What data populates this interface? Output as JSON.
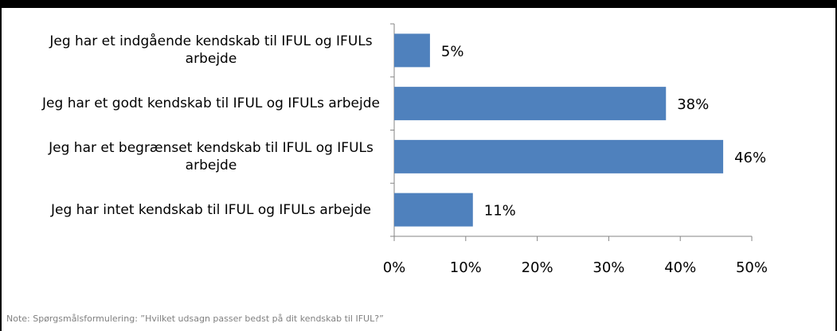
{
  "chart_data": {
    "type": "hbar",
    "categories": [
      "Jeg har et indgående kendskab til IFUL og IFULs arbejde",
      "Jeg har et godt kendskab til IFUL og IFULs arbejde",
      "Jeg har et begrænset kendskab til IFUL og IFULs arbejde",
      "Jeg har intet kendskab til IFUL og IFULs arbejde"
    ],
    "values": [
      5,
      38,
      46,
      11
    ],
    "value_labels": [
      "5%",
      "38%",
      "46%",
      "11%"
    ],
    "color": "#4f81bd",
    "xlim": [
      0,
      50
    ],
    "xticks": [
      {
        "value": 0,
        "label": "0%"
      },
      {
        "value": 10,
        "label": "10%"
      },
      {
        "value": 20,
        "label": "20%"
      },
      {
        "value": 30,
        "label": "30%"
      },
      {
        "value": 40,
        "label": "40%"
      },
      {
        "value": 50,
        "label": "50%"
      }
    ],
    "note": "Note: Spørgsmålsformulering: ”Hvilket udsagn passer bedst på dit kendskab til IFUL?”"
  }
}
